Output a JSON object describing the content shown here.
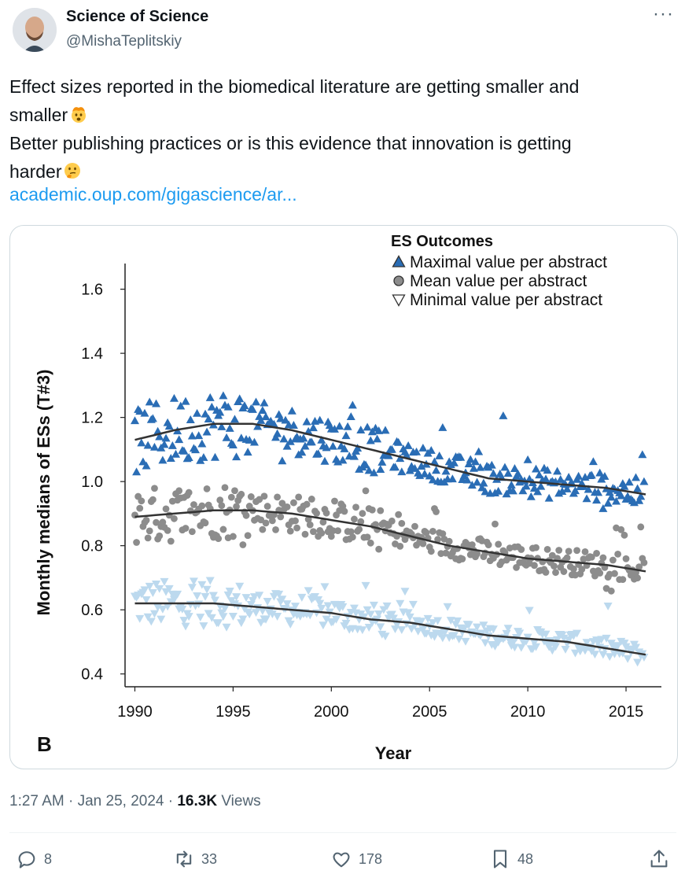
{
  "tweet": {
    "author_name": "Science of Science",
    "author_handle": "@MishaTeplitskiy",
    "text_lines": [
      "Effect sizes reported in the biomedical literature are getting smaller and",
      "smaller",
      "Better publishing practices or is this evidence that innovation is getting",
      "harder"
    ],
    "link_text": "academic.oup.com/gigascience/ar...",
    "time": "1:27 AM · Jan 25, 2024 · ",
    "views_count": "16.3K",
    "views_label": " Views",
    "more_label": "···"
  },
  "actions": {
    "replies": "8",
    "reposts": "33",
    "likes": "178",
    "bookmarks": "48"
  },
  "icons": {
    "emoji_1": "exploding-head-icon",
    "emoji_2": "thinking-face-icon",
    "reply": "reply-icon",
    "repost": "repost-icon",
    "like": "heart-icon",
    "bookmark": "bookmark-icon",
    "share": "share-icon"
  },
  "colors": {
    "link": "#1d9bf0",
    "max_series": "#2a6db5",
    "mean_series": "#8c8c8c",
    "min_series": "#bcd9ee"
  },
  "chart_data": {
    "type": "scatter",
    "panel_label": "B",
    "xlabel": "Year",
    "ylabel": "Monthly medians of ESs (T#3)",
    "xlim": [
      1989.5,
      2016.8
    ],
    "ylim": [
      0.36,
      1.68
    ],
    "x_ticks": [
      1990,
      1995,
      2000,
      2005,
      2010,
      2015
    ],
    "y_ticks": [
      0.4,
      0.6,
      0.8,
      1.0,
      1.2,
      1.4,
      1.6
    ],
    "legend_title": "ES Outcomes",
    "legend_placement": "top-right",
    "series": [
      {
        "name": "Maximal value per abstract",
        "marker": "triangle-up",
        "color": "#2a6db5",
        "trend": [
          [
            1990,
            1.13
          ],
          [
            1992,
            1.16
          ],
          [
            1994,
            1.18
          ],
          [
            1996,
            1.18
          ],
          [
            1998,
            1.16
          ],
          [
            2000,
            1.13
          ],
          [
            2002,
            1.1
          ],
          [
            2004,
            1.07
          ],
          [
            2006,
            1.04
          ],
          [
            2008,
            1.01
          ],
          [
            2010,
            1.0
          ],
          [
            2012,
            0.99
          ],
          [
            2014,
            0.98
          ],
          [
            2016,
            0.96
          ]
        ],
        "spread": 0.06
      },
      {
        "name": "Mean value per abstract",
        "marker": "circle",
        "color": "#8c8c8c",
        "trend": [
          [
            1990,
            0.89
          ],
          [
            1992,
            0.9
          ],
          [
            1994,
            0.91
          ],
          [
            1996,
            0.91
          ],
          [
            1998,
            0.9
          ],
          [
            2000,
            0.88
          ],
          [
            2002,
            0.86
          ],
          [
            2004,
            0.83
          ],
          [
            2006,
            0.8
          ],
          [
            2008,
            0.78
          ],
          [
            2010,
            0.76
          ],
          [
            2012,
            0.75
          ],
          [
            2014,
            0.74
          ],
          [
            2016,
            0.72
          ]
        ],
        "spread": 0.05
      },
      {
        "name": "Minimal value per abstract",
        "marker": "triangle-down",
        "color": "#bcd9ee",
        "trend": [
          [
            1990,
            0.62
          ],
          [
            1992,
            0.62
          ],
          [
            1994,
            0.62
          ],
          [
            1996,
            0.61
          ],
          [
            1998,
            0.6
          ],
          [
            2000,
            0.59
          ],
          [
            2002,
            0.57
          ],
          [
            2004,
            0.56
          ],
          [
            2006,
            0.54
          ],
          [
            2008,
            0.52
          ],
          [
            2010,
            0.51
          ],
          [
            2012,
            0.5
          ],
          [
            2014,
            0.48
          ],
          [
            2016,
            0.46
          ]
        ],
        "spread": 0.04
      }
    ]
  }
}
